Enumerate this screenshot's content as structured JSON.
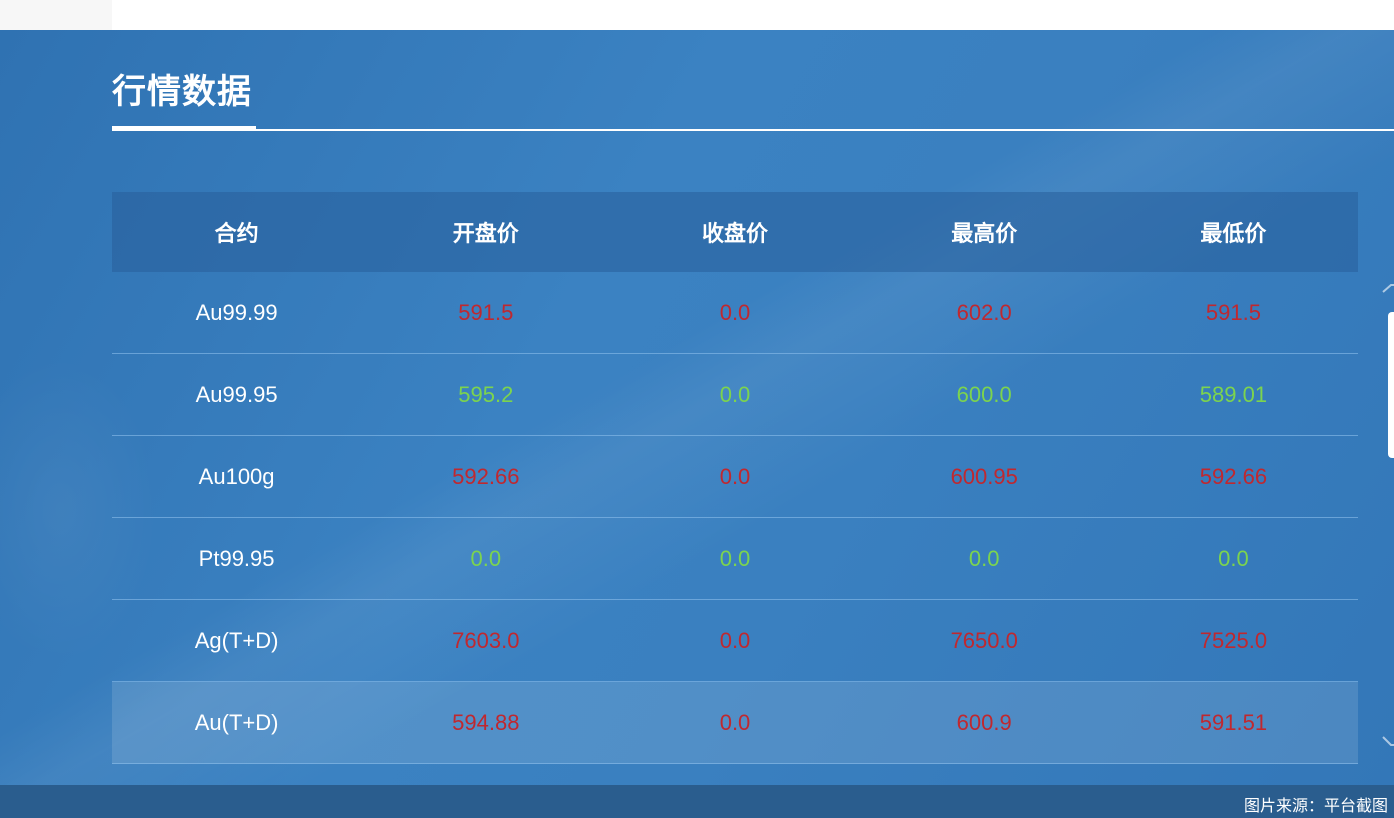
{
  "section_title": "行情数据",
  "table": {
    "headers": [
      "合约",
      "开盘价",
      "收盘价",
      "最高价",
      "最低价"
    ],
    "rows": [
      {
        "contract": "Au99.99",
        "open": "591.5",
        "close": "0.0",
        "high": "602.0",
        "low": "591.5",
        "color": "#c0282f"
      },
      {
        "contract": "Au99.95",
        "open": "595.2",
        "close": "0.0",
        "high": "600.0",
        "low": "589.01",
        "color": "#7cd44e"
      },
      {
        "contract": "Au100g",
        "open": "592.66",
        "close": "0.0",
        "high": "600.95",
        "low": "592.66",
        "color": "#c0282f"
      },
      {
        "contract": "Pt99.95",
        "open": "0.0",
        "close": "0.0",
        "high": "0.0",
        "low": "0.0",
        "color": "#7cd44e"
      },
      {
        "contract": "Ag(T+D)",
        "open": "7603.0",
        "close": "0.0",
        "high": "7650.0",
        "low": "7525.0",
        "color": "#c0282f"
      },
      {
        "contract": "Au(T+D)",
        "open": "594.88",
        "close": "0.0",
        "high": "600.9",
        "low": "591.51",
        "color": "#c0282f"
      }
    ]
  },
  "footer": {
    "source": "图片来源：平台截图"
  },
  "icons": {
    "scroll_up": "chevron-up-icon",
    "scroll_down": "chevron-down-icon"
  }
}
